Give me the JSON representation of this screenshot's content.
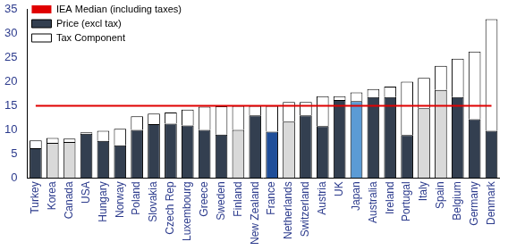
{
  "chart_data": {
    "type": "bar",
    "stacked": true,
    "grid": false,
    "legend": "upper left",
    "categories": [
      "Turkey",
      "Korea",
      "Canada",
      "USA",
      "Hungary",
      "Norway",
      "Poland",
      "Slovakia",
      "Czech Rep",
      "Luxembourg",
      "Greece",
      "Sweden",
      "Finland",
      "New Zealand",
      "France",
      "Netherlands",
      "Switzerland",
      "Austria",
      "UK",
      "Japan",
      "Australia",
      "Ireland",
      "Portugal",
      "Italy",
      "Spain",
      "Belgium",
      "Germany",
      "Denmark"
    ],
    "ylim": [
      0,
      35
    ],
    "yticks": [
      0,
      5,
      10,
      15,
      20,
      25,
      30,
      35
    ],
    "series": [
      {
        "name": "Price (excl tax)",
        "type": "bar",
        "values": [
          6.2,
          7.3,
          7.5,
          9.2,
          7.7,
          6.8,
          10.0,
          11.2,
          11.3,
          10.9,
          10.0,
          9.0,
          10.0,
          13.0,
          9.6,
          11.7,
          13.0,
          10.8,
          16.2,
          16.0,
          16.8,
          16.8,
          8.9,
          14.5,
          18.3,
          16.8,
          12.2,
          9.8
        ],
        "colors": [
          "#333f50",
          "#d9d9d9",
          "#d9d9d9",
          "#333f50",
          "#333f50",
          "#333f50",
          "#333f50",
          "#333f50",
          "#333f50",
          "#333f50",
          "#333f50",
          "#333f50",
          "#d9d9d9",
          "#333f50",
          "#1f4e99",
          "#d9d9d9",
          "#333f50",
          "#333f50",
          "#333f50",
          "#5b9bd5",
          "#333f50",
          "#333f50",
          "#333f50",
          "#d9d9d9",
          "#d9d9d9",
          "#333f50",
          "#333f50",
          "#333f50"
        ]
      },
      {
        "name": "Tax Component",
        "type": "bar",
        "color": "#ffffff",
        "values": [
          1.6,
          1.0,
          0.7,
          0.3,
          2.1,
          3.4,
          2.8,
          2.2,
          2.3,
          3.3,
          4.8,
          5.9,
          5.0,
          2.0,
          5.4,
          4.1,
          2.8,
          6.2,
          0.8,
          1.8,
          1.7,
          2.2,
          11.1,
          6.3,
          5.0,
          8.0,
          14.1,
          23.2
        ]
      },
      {
        "name": "IEA Median (including taxes)",
        "type": "line",
        "color": "#e00000",
        "values": [
          15,
          15,
          15,
          15,
          15,
          15,
          15,
          15,
          15,
          15,
          15,
          15,
          15,
          15,
          15,
          15,
          15,
          15,
          15,
          15,
          15,
          15,
          15,
          15,
          15,
          15,
          15,
          15
        ]
      }
    ]
  }
}
